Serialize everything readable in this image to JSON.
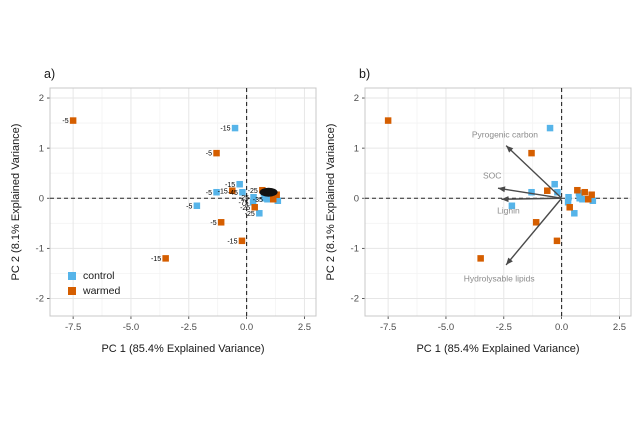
{
  "figure": {
    "background": "#ffffff",
    "description_visible_elements": "two-panel PCA scatter figure"
  },
  "colors": {
    "control": "#56B4E9",
    "warmed": "#D55E00",
    "grid_major": "#e6e6e6",
    "grid_minor": "#f3f3f3",
    "panel_border": "#c8c8c8",
    "zero_line": "#262626",
    "arrow": "#4a4a4a",
    "arrow_label": "#8c8c8c",
    "tick_text": "#4d4d4d",
    "point_label": "#000000"
  },
  "chart_data": {
    "type": "scatter",
    "xlabel": "PC 1 (85.4% Explained Variance)",
    "ylabel": "PC 2 (8.1% Explained Variance)",
    "xlim": [
      -8.5,
      3.0
    ],
    "ylim": [
      -2.35,
      2.2
    ],
    "xticks": [
      {
        "v": -7.5,
        "label": "-7.5"
      },
      {
        "v": -5.0,
        "label": "-5.0"
      },
      {
        "v": -2.5,
        "label": "-2.5"
      },
      {
        "v": 0.0,
        "label": "0.0"
      },
      {
        "v": 2.5,
        "label": "2.5"
      }
    ],
    "yticks": [
      {
        "v": -2,
        "label": "-2"
      },
      {
        "v": -1,
        "label": "-1"
      },
      {
        "v": 0,
        "label": "0"
      },
      {
        "v": 1,
        "label": "1"
      },
      {
        "v": 2,
        "label": "2"
      }
    ],
    "grid": "major and minor, light gray, on white panel",
    "zero_reference_lines": "dashed black at x=0 and y=0",
    "legend": {
      "position": "inside bottom-left of panel a",
      "items": [
        {
          "label": "control",
          "color": "#56B4E9"
        },
        {
          "label": "warmed",
          "color": "#D55E00"
        }
      ]
    },
    "series": [
      {
        "name": "control",
        "color": "#56B4E9",
        "marker": "filled square",
        "points": [
          {
            "x": -0.5,
            "y": 1.4,
            "label": "-15"
          },
          {
            "x": -1.3,
            "y": 0.12,
            "label": "-5"
          },
          {
            "x": -0.3,
            "y": 0.28,
            "label": "-15"
          },
          {
            "x": -0.18,
            "y": 0.12,
            "label": "-45"
          },
          {
            "x": -2.15,
            "y": -0.15,
            "label": "-5"
          },
          {
            "x": 0.3,
            "y": 0.02,
            "label": "-25"
          },
          {
            "x": 0.28,
            "y": -0.08,
            "label": "-75"
          },
          {
            "x": 0.75,
            "y": 0.1,
            "label": ""
          },
          {
            "x": 0.78,
            "y": 0.0,
            "label": ""
          },
          {
            "x": 0.9,
            "y": -0.02,
            "label": "-35"
          },
          {
            "x": 0.55,
            "y": -0.3,
            "label": "-25"
          },
          {
            "x": 1.35,
            "y": -0.05,
            "label": ""
          }
        ]
      },
      {
        "name": "warmed",
        "color": "#D55E00",
        "marker": "filled square",
        "points": [
          {
            "x": -7.5,
            "y": 1.55,
            "label": "-5"
          },
          {
            "x": -1.3,
            "y": 0.9,
            "label": "-5"
          },
          {
            "x": -0.62,
            "y": 0.15,
            "label": "-15"
          },
          {
            "x": -1.1,
            "y": -0.48,
            "label": "-5"
          },
          {
            "x": -0.2,
            "y": -0.85,
            "label": "-15"
          },
          {
            "x": -3.5,
            "y": -1.2,
            "label": "-15"
          },
          {
            "x": 0.68,
            "y": 0.16,
            "label": "-25"
          },
          {
            "x": 1.0,
            "y": 0.12,
            "label": ""
          },
          {
            "x": 1.3,
            "y": 0.07,
            "label": ""
          },
          {
            "x": 1.15,
            "y": -0.02,
            "label": ""
          },
          {
            "x": 0.35,
            "y": -0.18,
            "label": "-25"
          }
        ]
      }
    ],
    "panels": [
      {
        "id": "a",
        "label": "a)",
        "show_point_labels": true,
        "show_legend": true,
        "overplotted_label_cluster": {
          "x": 0.95,
          "y": 0.12
        }
      },
      {
        "id": "b",
        "label": "b)",
        "show_point_labels": false,
        "show_legend": false,
        "arrows": [
          {
            "label": "Pyrogenic carbon",
            "tip_x": -2.4,
            "tip_y": 1.05,
            "label_x": -2.45,
            "label_y": 1.27
          },
          {
            "label": "SOC",
            "tip_x": -2.75,
            "tip_y": 0.2,
            "label_x": -3.0,
            "label_y": 0.45
          },
          {
            "label": "Lignin",
            "tip_x": -2.6,
            "tip_y": -0.02,
            "label_x": -2.3,
            "label_y": -0.24
          },
          {
            "label": "Hydrolysable lipids",
            "tip_x": -2.4,
            "tip_y": -1.33,
            "label_x": -2.7,
            "label_y": -1.6
          }
        ]
      }
    ]
  }
}
